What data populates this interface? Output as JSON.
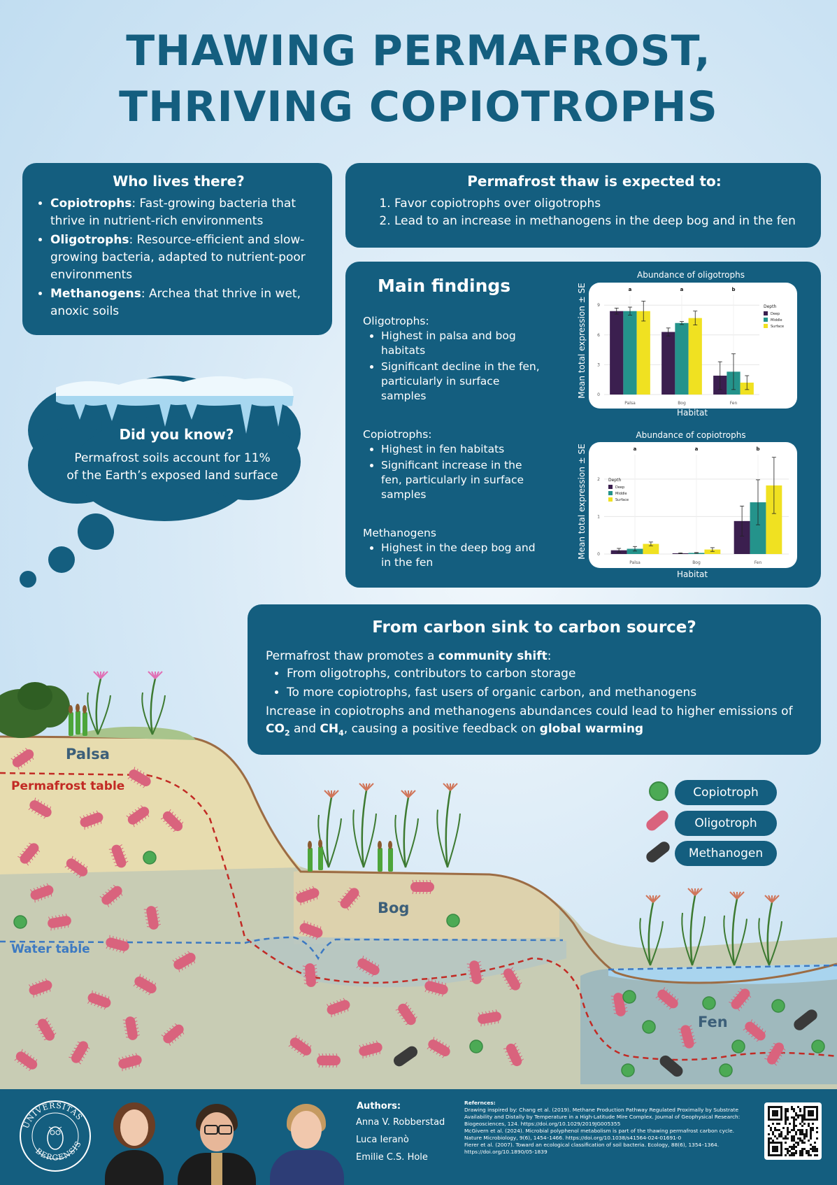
{
  "title": {
    "line1": "THAWING PERMAFROST,",
    "line2": "THRIVING COPIOTROPHS"
  },
  "who": {
    "heading": "Who lives there?",
    "items": [
      {
        "term": "Copiotrophs",
        "text": ": Fast-growing bacteria that thrive in nutrient-rich environments"
      },
      {
        "term": "Oligotrophs",
        "text": ": Resource-efficient and slow-growing bacteria, adapted to nutrient-poor environments"
      },
      {
        "term": "Methanogens",
        "text": ": Archea that thrive in wet, anoxic soils"
      }
    ]
  },
  "expected": {
    "heading": "Permafrost thaw is expected to:",
    "items": [
      "Favor copiotrophs over oligotrophs",
      "Lead to an increase in methanogens in the deep bog and in the fen"
    ]
  },
  "findings": {
    "heading": "Main findings",
    "groups": [
      {
        "label": "Oligotrophs:",
        "items": [
          "Highest in palsa and bog habitats",
          "Significant decline in the fen, particularly in surface samples"
        ]
      },
      {
        "label": "Copiotrophs:",
        "items": [
          "Highest in fen habitats",
          "Significant increase in the fen, particularly in surface samples"
        ]
      },
      {
        "label": "Methanogens",
        "items": [
          "Highest in the deep bog and in the fen"
        ]
      }
    ]
  },
  "didyouknow": {
    "heading": "Did you know?",
    "line1": "Permafrost soils account for 11%",
    "line2": "of the Earth’s exposed land surface"
  },
  "carbon": {
    "heading": "From carbon sink to carbon source?",
    "intro_a": "Permafrost thaw promotes a ",
    "intro_b": "community shift",
    "intro_c": ":",
    "bullets": [
      "From oligotrophs, contributors to carbon storage",
      "To more copiotrophs, fast users of organic carbon, and methanogens"
    ],
    "outro_a": "Increase in copiotrophs and methanogens abundances could lead to higher emissions of",
    "co2": "CO",
    "co2_sub": "2",
    "and": " and ",
    "ch4": "CH",
    "ch4_sub": "4",
    "outro_b": ", causing a positive feedback on ",
    "outro_c": "global warming"
  },
  "landscape": {
    "palsa": "Palsa",
    "bog": "Bog",
    "fen": "Fen",
    "permafrost_table": "Permafrost table",
    "water_table": "Water table"
  },
  "legend": {
    "copiotroph": "Copiotroph",
    "oligotroph": "Oligotroph",
    "methanogen": "Methanogen"
  },
  "colors": {
    "panel": "#145e7f",
    "deep": "#3b1f4f",
    "middle": "#24938b",
    "surface": "#f0e121",
    "bacteria": "#d9637d",
    "copiotroph": "#4caa55",
    "methanogen": "#3a3a3a"
  },
  "authors": {
    "heading": "Authors:",
    "names": [
      "Anna V. Robberstad",
      "Luca Ieranò",
      "Emilie C.S. Hole"
    ]
  },
  "logo": {
    "text_top": "UNIVERSITAS",
    "text_bottom": "BERGENSIS"
  },
  "references": {
    "heading": "Refernces:",
    "lines": [
      "Drawing inspired by: Chang et al. (2019). Methane Production Pathway Regulated Proximally by Substrate",
      "Availability and Distally by Temperature in a High-Latitude Mire Complex. Journal of Geophysical Research:",
      "Biogeosciences, 124. https://doi.org/10.1029/2019JG005355",
      "McGivern et al. (2024). Microbial polyphenol metabolism is part of the thawing permafrost carbon cycle.",
      "Nature Microbiology, 9(6), 1454–1466. https://doi.org/10.1038/s41564-024-01691-0",
      "Fierer et al. (2007). Toward an ecological classification of soil bacteria. Ecology, 88(6), 1354–1364.",
      "https://doi.org/10.1890/05-1839"
    ]
  },
  "chart_data": [
    {
      "type": "bar",
      "title": "Abundance of oligotrophs",
      "xlabel": "Habitat",
      "ylabel": "Mean total expression ± SE",
      "categories": [
        "Palsa",
        "Bog",
        "Fen"
      ],
      "significance": [
        "a",
        "a",
        "b"
      ],
      "yticks": [
        "0",
        "3",
        "6",
        "9"
      ],
      "ylim": [
        0,
        10
      ],
      "legend_title": "Depth",
      "legend_position": "right",
      "series": [
        {
          "name": "Deep",
          "values": [
            8.4,
            6.3,
            1.9
          ],
          "errors": [
            0.3,
            0.4,
            1.4
          ]
        },
        {
          "name": "Middle",
          "values": [
            8.4,
            7.2,
            2.3
          ],
          "errors": [
            0.4,
            0.15,
            1.8
          ]
        },
        {
          "name": "Surface",
          "values": [
            8.4,
            7.7,
            1.2
          ],
          "errors": [
            1.0,
            0.7,
            0.7
          ]
        }
      ]
    },
    {
      "type": "bar",
      "title": "Abundance of copiotrophs",
      "xlabel": "Habitat",
      "ylabel": "Mean total expression ± SE",
      "categories": [
        "Palsa",
        "Bog",
        "Fen"
      ],
      "significance": [
        "a",
        "a",
        "b"
      ],
      "yticks": [
        "0",
        "1",
        "2"
      ],
      "ylim": [
        0,
        2.65
      ],
      "legend_title": "Depth",
      "legend_position": "left",
      "series": [
        {
          "name": "Deep",
          "values": [
            0.1,
            0.02,
            0.88
          ],
          "errors": [
            0.05,
            0.01,
            0.4
          ]
        },
        {
          "name": "Middle",
          "values": [
            0.14,
            0.03,
            1.38
          ],
          "errors": [
            0.06,
            0.01,
            0.6
          ]
        },
        {
          "name": "Surface",
          "values": [
            0.27,
            0.12,
            1.83
          ],
          "errors": [
            0.05,
            0.05,
            0.75
          ]
        }
      ]
    }
  ]
}
